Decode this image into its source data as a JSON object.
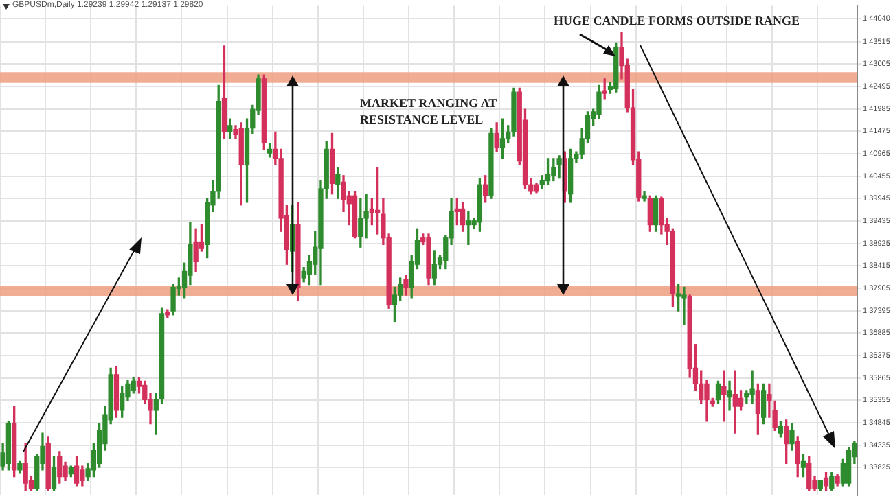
{
  "chart_data": {
    "type": "candlestick",
    "title": "GBPUSDm,Daily 1.29239 1.29942 1.29137 1.29820",
    "annotations": [
      "MARKET RANGING AT\nRESISTANCE LEVEL",
      "HUGE CANDLE FORMS OUTSIDE RANGE"
    ],
    "categories": [
      null,
      null,
      null,
      null,
      null,
      null,
      null,
      null,
      null,
      null,
      null,
      null,
      null,
      null,
      null,
      null,
      null,
      null,
      null,
      null,
      null,
      null,
      null,
      null,
      null,
      null,
      null,
      null,
      null,
      null,
      null,
      null,
      null,
      null,
      null,
      null,
      null,
      null,
      null,
      null,
      null,
      null,
      null,
      null,
      null,
      null,
      null,
      null,
      null,
      null,
      null,
      null,
      null,
      null,
      null,
      null,
      null,
      null,
      null,
      null,
      null,
      null,
      null,
      null,
      null,
      null,
      null,
      null,
      null,
      null,
      null,
      null,
      null,
      null,
      null,
      null,
      null,
      null,
      null,
      null,
      null,
      null,
      null,
      null,
      null,
      null,
      null,
      null,
      null,
      null,
      null,
      null,
      null,
      null,
      null,
      null,
      null,
      null,
      null,
      null,
      null,
      null,
      null,
      null,
      null,
      null,
      null,
      null,
      null,
      null,
      null,
      null,
      null,
      null,
      null,
      null,
      null,
      null,
      null,
      null,
      null,
      null,
      null,
      null,
      null,
      null,
      null,
      null,
      null,
      null,
      null,
      null,
      null,
      null,
      null,
      null,
      null,
      null,
      null,
      null,
      null,
      null,
      null,
      null,
      null,
      null,
      null,
      null,
      null,
      null,
      null
    ],
    "ohlc": [
      [
        1.3386,
        1.3437,
        1.3377,
        1.3416
      ],
      [
        1.3392,
        1.3488,
        1.3377,
        1.3482
      ],
      [
        1.3482,
        1.3522,
        1.3362,
        1.3377
      ],
      [
        1.3377,
        1.3398,
        1.3371,
        1.3392
      ],
      [
        1.3392,
        1.3437,
        1.3331,
        1.3347
      ],
      [
        1.3353,
        1.3362,
        1.3331,
        1.3334
      ],
      [
        1.3334,
        1.3413,
        1.3331,
        1.3407
      ],
      [
        1.3392,
        1.3461,
        1.3377,
        1.3431
      ],
      [
        1.3437,
        1.3452,
        1.3331,
        1.3334
      ],
      [
        1.3334,
        1.3407,
        1.3331,
        1.3383
      ],
      [
        1.3407,
        1.3419,
        1.3347,
        1.3362
      ],
      [
        1.3386,
        1.3395,
        1.3353,
        1.3362
      ],
      [
        1.3368,
        1.3386,
        1.3362,
        1.3383
      ],
      [
        1.3386,
        1.3407,
        1.3341,
        1.3347
      ],
      [
        1.3377,
        1.3386,
        1.3341,
        1.3353
      ],
      [
        1.3362,
        1.3392,
        1.3353,
        1.338
      ],
      [
        1.3377,
        1.3437,
        1.3362,
        1.3422
      ],
      [
        1.3392,
        1.3482,
        1.3383,
        1.3467
      ],
      [
        1.3437,
        1.3522,
        1.3422,
        1.3503
      ],
      [
        1.3491,
        1.3609,
        1.3482,
        1.3594
      ],
      [
        1.3594,
        1.3612,
        1.3497,
        1.3513
      ],
      [
        1.3513,
        1.3567,
        1.3497,
        1.3552
      ],
      [
        1.3543,
        1.3582,
        1.3534,
        1.3573
      ],
      [
        1.3558,
        1.3588,
        1.3552,
        1.3579
      ],
      [
        1.3579,
        1.3588,
        1.3552,
        1.3567
      ],
      [
        1.357,
        1.3579,
        1.3528,
        1.3537
      ],
      [
        1.3537,
        1.3552,
        1.3482,
        1.3513
      ],
      [
        1.3513,
        1.3552,
        1.3458,
        1.3537
      ],
      [
        1.354,
        1.3745,
        1.3528,
        1.3733
      ],
      [
        1.3736,
        1.3742,
        1.3724,
        1.373
      ],
      [
        1.3739,
        1.3799,
        1.373,
        1.3793
      ],
      [
        1.379,
        1.3814,
        1.3775,
        1.3796
      ],
      [
        1.3793,
        1.3848,
        1.3769,
        1.3829
      ],
      [
        1.382,
        1.3941,
        1.3799,
        1.389
      ],
      [
        1.3896,
        1.3926,
        1.3829,
        1.3851
      ],
      [
        1.3896,
        1.3935,
        1.3875,
        1.3881
      ],
      [
        1.389,
        1.3995,
        1.386,
        1.3986
      ],
      [
        1.398,
        1.4035,
        1.3965,
        1.4011
      ],
      [
        1.4011,
        1.4252,
        1.3995,
        1.4216
      ],
      [
        1.4222,
        1.4342,
        1.4131,
        1.4146
      ],
      [
        1.4146,
        1.4176,
        1.4131,
        1.4161
      ],
      [
        1.4152,
        1.4161,
        1.4131,
        1.414
      ],
      [
        1.4155,
        1.4167,
        1.398,
        1.4071
      ],
      [
        1.4071,
        1.4176,
        1.3986,
        1.4155
      ],
      [
        1.4155,
        1.4207,
        1.4143,
        1.4198
      ],
      [
        1.4195,
        1.4276,
        1.4186,
        1.4267
      ],
      [
        1.4267,
        1.4276,
        1.4107,
        1.4122
      ],
      [
        1.4098,
        1.4119,
        1.4089,
        1.4107
      ],
      [
        1.4107,
        1.4146,
        1.4071,
        1.4086
      ],
      [
        1.4086,
        1.4107,
        1.392,
        1.395
      ],
      [
        1.3956,
        1.398,
        1.3845,
        1.3878
      ],
      [
        1.3875,
        1.398,
        1.3829,
        1.3935
      ],
      [
        1.3935,
        1.3986,
        1.3763,
        1.3793
      ],
      [
        1.3814,
        1.3838,
        1.3805,
        1.3829
      ],
      [
        1.3823,
        1.3866,
        1.3799,
        1.3851
      ],
      [
        1.3845,
        1.392,
        1.3823,
        1.3884
      ],
      [
        1.3881,
        1.4035,
        1.3799,
        1.4017
      ],
      [
        1.4017,
        1.4125,
        1.3995,
        1.4107
      ],
      [
        1.4107,
        1.4143,
        1.4005,
        1.4029
      ],
      [
        1.4026,
        1.4065,
        1.3995,
        1.405
      ],
      [
        1.4032,
        1.4047,
        1.3965,
        1.3992
      ],
      [
        1.4001,
        1.4011,
        1.3935,
        1.3983
      ],
      [
        1.4001,
        1.4011,
        1.3905,
        1.3908
      ],
      [
        1.3908,
        1.3995,
        1.3884,
        1.395
      ],
      [
        1.395,
        1.4005,
        1.3905,
        1.3965
      ],
      [
        1.3971,
        1.3995,
        1.3935,
        1.3962
      ],
      [
        1.3968,
        1.4065,
        1.3914,
        1.3962
      ],
      [
        1.3959,
        1.3995,
        1.389,
        1.3905
      ],
      [
        1.3905,
        1.3914,
        1.3745,
        1.3754
      ],
      [
        1.3754,
        1.3793,
        1.3715,
        1.3775
      ],
      [
        1.3775,
        1.3814,
        1.3763,
        1.3799
      ],
      [
        1.3811,
        1.382,
        1.3775,
        1.3793
      ],
      [
        1.3793,
        1.3866,
        1.3769,
        1.3851
      ],
      [
        1.3845,
        1.3926,
        1.3835,
        1.3899
      ],
      [
        1.3905,
        1.3914,
        1.389,
        1.3896
      ],
      [
        1.3905,
        1.3914,
        1.3799,
        1.3814
      ],
      [
        1.3814,
        1.3875,
        1.3799,
        1.3845
      ],
      [
        1.3845,
        1.3866,
        1.3835,
        1.386
      ],
      [
        1.3854,
        1.3911,
        1.3835,
        1.3905
      ],
      [
        1.3905,
        1.3995,
        1.389,
        1.3965
      ],
      [
        1.3971,
        1.3995,
        1.3935,
        1.3965
      ],
      [
        1.3971,
        1.3986,
        1.392,
        1.3935
      ],
      [
        1.3935,
        1.3965,
        1.389,
        1.3944
      ],
      [
        1.3935,
        1.395,
        1.3926,
        1.3944
      ],
      [
        1.3941,
        1.4041,
        1.392,
        1.4026
      ],
      [
        1.4026,
        1.4047,
        1.3986,
        1.4001
      ],
      [
        1.4001,
        1.4155,
        1.3995,
        1.4143
      ],
      [
        1.4143,
        1.4167,
        1.4101,
        1.411
      ],
      [
        1.411,
        1.4176,
        1.4086,
        1.4131
      ],
      [
        1.4131,
        1.4161,
        1.4122,
        1.4146
      ],
      [
        1.4146,
        1.4246,
        1.4137,
        1.4237
      ],
      [
        1.4237,
        1.4246,
        1.4071,
        1.408
      ],
      [
        1.4173,
        1.4198,
        1.4017,
        1.4026
      ],
      [
        1.4026,
        1.4041,
        1.4005,
        1.4011
      ],
      [
        1.4026,
        1.4029,
        1.4008,
        1.4011
      ],
      [
        1.4026,
        1.4047,
        1.4017,
        1.4035
      ],
      [
        1.4035,
        1.4086,
        1.4026,
        1.405
      ],
      [
        1.4047,
        1.4086,
        1.4035,
        1.4065
      ],
      [
        1.4071,
        1.4092,
        1.4041,
        1.4086
      ],
      [
        1.4086,
        1.4101,
        1.3986,
        1.4011
      ],
      [
        1.4005,
        1.4107,
        1.3986,
        1.4086
      ],
      [
        1.4086,
        1.4101,
        1.4077,
        1.4095
      ],
      [
        1.4095,
        1.4155,
        1.4086,
        1.4131
      ],
      [
        1.4131,
        1.4192,
        1.4122,
        1.4183
      ],
      [
        1.4176,
        1.4198,
        1.4161,
        1.4192
      ],
      [
        1.4186,
        1.4252,
        1.4176,
        1.4237
      ],
      [
        1.424,
        1.4267,
        1.4222,
        1.4234
      ],
      [
        1.4243,
        1.4258,
        1.4234,
        1.4249
      ],
      [
        1.4246,
        1.4349,
        1.4237,
        1.4339
      ],
      [
        1.4339,
        1.4373,
        1.4267,
        1.4297
      ],
      [
        1.4297,
        1.4312,
        1.4192,
        1.4201
      ],
      [
        1.4201,
        1.4243,
        1.4071,
        1.4083
      ],
      [
        1.4083,
        1.4101,
        1.3989,
        1.3998
      ],
      [
        1.3995,
        1.4011,
        1.3989,
        1.4001
      ],
      [
        1.3995,
        1.4001,
        1.392,
        1.3935
      ],
      [
        1.3935,
        1.4001,
        1.392,
        1.3995
      ],
      [
        1.3995,
        1.3998,
        1.3914,
        1.3935
      ],
      [
        1.3935,
        1.395,
        1.389,
        1.392
      ],
      [
        1.392,
        1.3926,
        1.3748,
        1.3778
      ],
      [
        1.3772,
        1.3799,
        1.3739,
        1.3778
      ],
      [
        1.3769,
        1.3793,
        1.3709,
        1.3775
      ],
      [
        1.3772,
        1.3775,
        1.3588,
        1.3609
      ],
      [
        1.3609,
        1.3663,
        1.3558,
        1.3573
      ],
      [
        1.3573,
        1.3603,
        1.3528,
        1.3537
      ],
      [
        1.3573,
        1.3582,
        1.3488,
        1.3537
      ],
      [
        1.3534,
        1.354,
        1.3522,
        1.3528
      ],
      [
        1.3537,
        1.3579,
        1.3528,
        1.3573
      ],
      [
        1.3567,
        1.3603,
        1.3488,
        1.3549
      ],
      [
        1.3543,
        1.3579,
        1.3513,
        1.3558
      ],
      [
        1.3549,
        1.3603,
        1.3461,
        1.3522
      ],
      [
        1.354,
        1.3558,
        1.3513,
        1.3522
      ],
      [
        1.3543,
        1.3558,
        1.3528,
        1.3552
      ],
      [
        1.3549,
        1.3603,
        1.3528,
        1.3561
      ],
      [
        1.3558,
        1.3573,
        1.3458,
        1.3506
      ],
      [
        1.3497,
        1.3573,
        1.3482,
        1.3558
      ],
      [
        1.3549,
        1.3573,
        1.3497,
        1.3534
      ],
      [
        1.3513,
        1.3534,
        1.3467,
        1.3473
      ],
      [
        1.3461,
        1.3488,
        1.3452,
        1.3476
      ],
      [
        1.3476,
        1.3491,
        1.3392,
        1.3437
      ],
      [
        1.3437,
        1.3482,
        1.3422,
        1.3467
      ],
      [
        1.3443,
        1.3452,
        1.3362,
        1.3392
      ],
      [
        1.3383,
        1.3413,
        1.3362,
        1.3398
      ],
      [
        1.3392,
        1.3407,
        1.3331,
        1.3334
      ],
      [
        1.3353,
        1.3362,
        1.3331,
        1.3334
      ],
      [
        1.3334,
        1.3353,
        1.3331,
        1.3353
      ],
      [
        1.3359,
        1.3371,
        1.3331,
        1.3341
      ],
      [
        1.3334,
        1.3371,
        1.3331,
        1.3362
      ],
      [
        1.3362,
        1.3368,
        1.3341,
        1.3347
      ],
      [
        1.3347,
        1.3401,
        1.3341,
        1.3392
      ],
      [
        1.3347,
        1.3428,
        1.3341,
        1.3422
      ],
      [
        1.3407,
        1.3443,
        1.3392,
        1.3437
      ]
    ],
    "colors": [
      "#2e8b2e",
      "#2e8b2e",
      "#d3305c",
      "#2e8b2e",
      "#d3305c",
      "#d3305c",
      "#2e8b2e",
      "#2e8b2e",
      "#d3305c",
      "#2e8b2e",
      "#d3305c",
      "#d3305c",
      "#2e8b2e",
      "#d3305c",
      "#d3305c",
      "#2e8b2e",
      "#2e8b2e",
      "#2e8b2e",
      "#2e8b2e",
      "#2e8b2e",
      "#d3305c",
      "#2e8b2e",
      "#2e8b2e",
      "#2e8b2e",
      "#d3305c",
      "#d3305c",
      "#d3305c",
      "#2e8b2e",
      "#2e8b2e",
      "#d3305c",
      "#2e8b2e",
      "#2e8b2e",
      "#2e8b2e",
      "#2e8b2e",
      "#d3305c",
      "#d3305c",
      "#2e8b2e",
      "#2e8b2e",
      "#2e8b2e",
      "#d3305c",
      "#2e8b2e",
      "#d3305c",
      "#d3305c",
      "#2e8b2e",
      "#2e8b2e",
      "#2e8b2e",
      "#d3305c",
      "#2e8b2e",
      "#d3305c",
      "#d3305c",
      "#d3305c",
      "#2e8b2e",
      "#d3305c",
      "#2e8b2e",
      "#2e8b2e",
      "#2e8b2e",
      "#2e8b2e",
      "#2e8b2e",
      "#d3305c",
      "#2e8b2e",
      "#d3305c",
      "#d3305c",
      "#d3305c",
      "#2e8b2e",
      "#2e8b2e",
      "#d3305c",
      "#d3305c",
      "#d3305c",
      "#d3305c",
      "#2e8b2e",
      "#2e8b2e",
      "#d3305c",
      "#2e8b2e",
      "#2e8b2e",
      "#d3305c",
      "#d3305c",
      "#2e8b2e",
      "#2e8b2e",
      "#2e8b2e",
      "#2e8b2e",
      "#d3305c",
      "#d3305c",
      "#2e8b2e",
      "#2e8b2e",
      "#2e8b2e",
      "#d3305c",
      "#2e8b2e",
      "#d3305c",
      "#2e8b2e",
      "#2e8b2e",
      "#2e8b2e",
      "#d3305c",
      "#d3305c",
      "#d3305c",
      "#d3305c",
      "#2e8b2e",
      "#2e8b2e",
      "#2e8b2e",
      "#2e8b2e",
      "#d3305c",
      "#2e8b2e",
      "#2e8b2e",
      "#2e8b2e",
      "#2e8b2e",
      "#2e8b2e",
      "#2e8b2e",
      "#d3305c",
      "#2e8b2e",
      "#2e8b2e",
      "#d3305c",
      "#d3305c",
      "#d3305c",
      "#d3305c",
      "#2e8b2e",
      "#d3305c",
      "#2e8b2e",
      "#d3305c",
      "#d3305c",
      "#d3305c",
      "#2e8b2e",
      "#2e8b2e",
      "#d3305c",
      "#d3305c",
      "#d3305c",
      "#d3305c",
      "#d3305c",
      "#2e8b2e",
      "#d3305c",
      "#2e8b2e",
      "#d3305c",
      "#d3305c",
      "#2e8b2e",
      "#2e8b2e",
      "#d3305c",
      "#2e8b2e",
      "#d3305c",
      "#d3305c",
      "#2e8b2e",
      "#d3305c",
      "#2e8b2e",
      "#d3305c",
      "#2e8b2e",
      "#d3305c",
      "#d3305c",
      "#2e8b2e",
      "#d3305c",
      "#2e8b2e",
      "#d3305c",
      "#2e8b2e",
      "#2e8b2e",
      "#2e8b2e"
    ],
    "ylim": [
      1.332,
      1.4433
    ],
    "yticks": [
      {
        "value": 1.4404,
        "label": "1.44040"
      },
      {
        "value": 1.43515,
        "label": "1.43515"
      },
      {
        "value": 1.43005,
        "label": "1.43005"
      },
      {
        "value": 1.42495,
        "label": "1.42495"
      },
      {
        "value": 1.41985,
        "label": "1.41985"
      },
      {
        "value": 1.41475,
        "label": "1.41475"
      },
      {
        "value": 1.40965,
        "label": "1.40965"
      },
      {
        "value": 1.40455,
        "label": "1.40455"
      },
      {
        "value": 1.39945,
        "label": "1.39945"
      },
      {
        "value": 1.39435,
        "label": "1.39435"
      },
      {
        "value": 1.38925,
        "label": "1.38925"
      },
      {
        "value": 1.38415,
        "label": "1.38415"
      },
      {
        "value": 1.37905,
        "label": "1.37905"
      },
      {
        "value": 1.37395,
        "label": "1.37395"
      },
      {
        "value": 1.36885,
        "label": "1.36885"
      },
      {
        "value": 1.36375,
        "label": "1.36375"
      },
      {
        "value": 1.35865,
        "label": "1.35865"
      },
      {
        "value": 1.35355,
        "label": "1.35355"
      },
      {
        "value": 1.34845,
        "label": "1.34845"
      },
      {
        "value": 1.34335,
        "label": "1.34335"
      },
      {
        "value": 1.33825,
        "label": "1.33825"
      }
    ],
    "bands": [
      {
        "axis": "y",
        "from": 1.4258,
        "to": 1.4282,
        "color": "#ee9f80"
      },
      {
        "axis": "y",
        "from": 1.3772,
        "to": 1.3796,
        "color": "#ee9f80"
      }
    ],
    "grid": true,
    "tick_labels": "y"
  }
}
